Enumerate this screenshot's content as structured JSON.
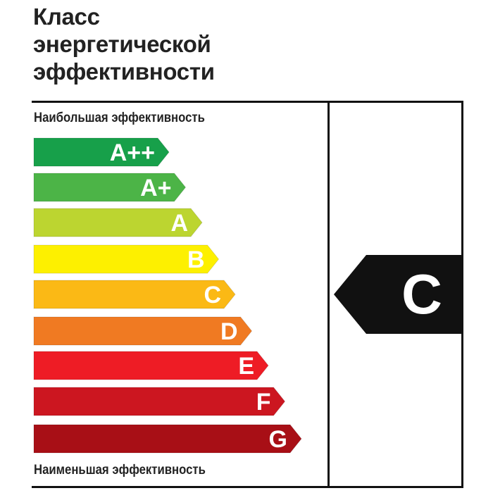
{
  "title": [
    "Класс",
    "энергетической",
    "эффективности"
  ],
  "top_caption": "Наибольшая эффективность",
  "bottom_caption": "Наименьшая эффективность",
  "classes": [
    {
      "label": "A++",
      "color": "#17a04a"
    },
    {
      "label": "A+",
      "color": "#4cb447"
    },
    {
      "label": "A",
      "color": "#bcd530"
    },
    {
      "label": "B",
      "color": "#fdf000"
    },
    {
      "label": "C",
      "color": "#fbb915"
    },
    {
      "label": "D",
      "color": "#f07a22"
    },
    {
      "label": "E",
      "color": "#ee1c25"
    },
    {
      "label": "F",
      "color": "#cc1620"
    },
    {
      "label": "G",
      "color": "#a80f16"
    }
  ],
  "rating": {
    "label": "C",
    "color": "#111111"
  }
}
